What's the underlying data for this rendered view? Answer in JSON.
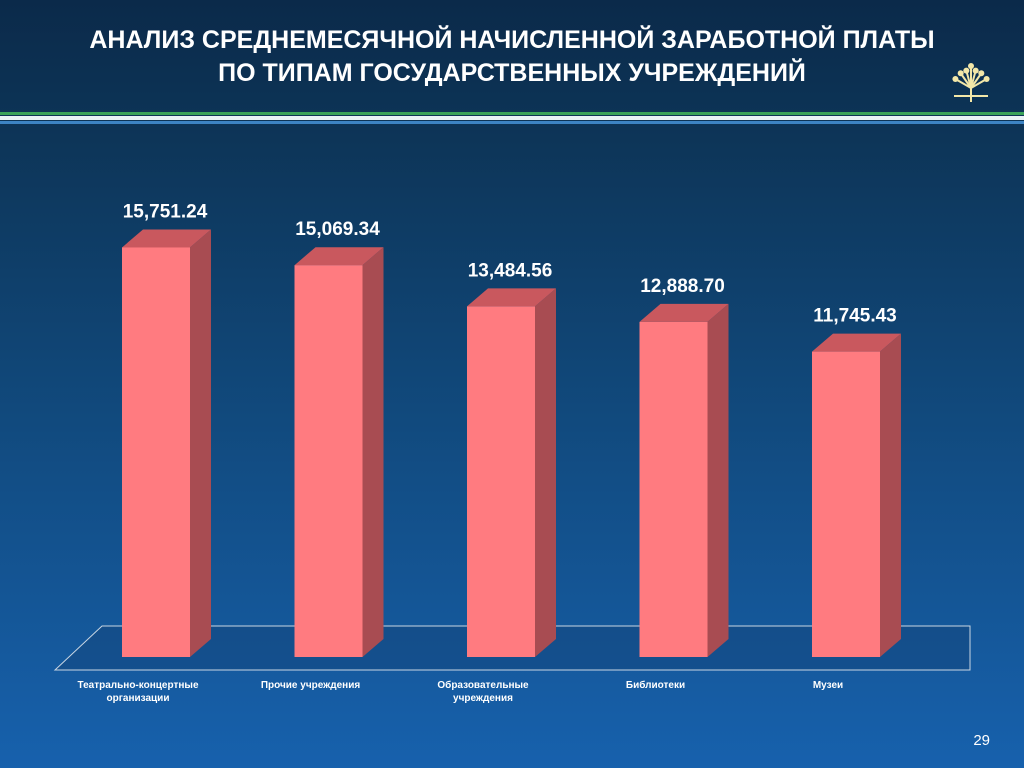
{
  "slide": {
    "title_line1": "АНАЛИЗ СРЕДНЕМЕСЯЧНОЙ НАЧИСЛЕННОЙ ЗАРАБОТНОЙ ПЛАТЫ",
    "title_line2": "ПО ТИПАМ ГОСУДАРСТВЕННЫХ УЧРЕЖДЕНИЙ",
    "page_number": "29",
    "logo_icon": "kurai-flower-icon"
  },
  "colors": {
    "bar_front": "#ff7b80",
    "bar_side": "#a84c52",
    "bar_top": "#c9585e",
    "band_green": "#3aa35a",
    "band_white": "#e9f3f7",
    "band_blue": "#3d84c4",
    "logo": "#f3e7a8"
  },
  "chart_data": {
    "type": "bar",
    "categories": [
      "Театрально-концертные организации",
      "Прочие учреждения",
      "Образовательные учреждения",
      "Библиотеки",
      "Музеи"
    ],
    "category_lines": [
      [
        "Театрально-концертные",
        "организации"
      ],
      [
        "Прочие учреждения"
      ],
      [
        "Образовательные",
        "учреждения"
      ],
      [
        "Библиотеки"
      ],
      [
        "Музеи"
      ]
    ],
    "values": [
      15751.24,
      15069.34,
      13484.56,
      12888.7,
      11745.43
    ],
    "value_labels": [
      "15,751.24",
      "15,069.34",
      "13,484.56",
      "12,888.70",
      "11,745.43"
    ],
    "title": "",
    "xlabel": "",
    "ylabel": "",
    "ylim": [
      0,
      18000
    ],
    "grid": false,
    "legend": "none",
    "three_d": true
  }
}
